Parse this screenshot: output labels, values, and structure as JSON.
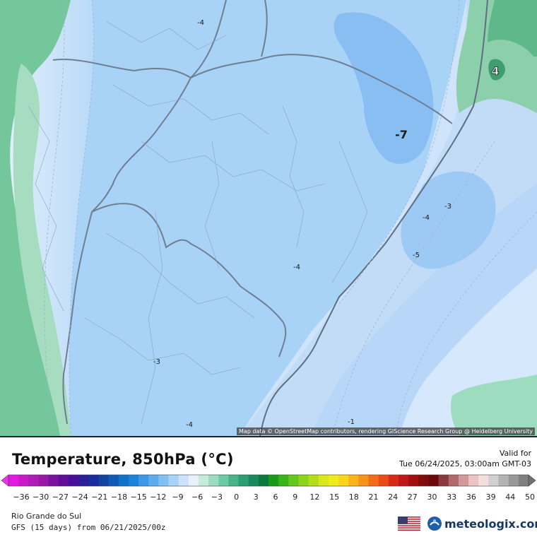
{
  "map": {
    "attribution": "Map data © OpenStreetMap contributors, rendering GIScience Research Group @ Heidelberg University",
    "contour_labels": [
      "-4",
      "-7",
      "-3",
      "-4",
      "-5",
      "-4",
      "-3",
      "-4",
      "-1",
      "4"
    ]
  },
  "title": "Temperature, 850hPa (°C)",
  "valid": {
    "label": "Valid for",
    "datetime": "Tue 06/24/2025, 03:00am GMT-03"
  },
  "legend": {
    "ticks": [
      "-36",
      "-30",
      "-27",
      "-24",
      "-21",
      "-18",
      "-15",
      "-12",
      "-9",
      "-6",
      "-3",
      "0",
      "3",
      "6",
      "9",
      "12",
      "15",
      "18",
      "21",
      "24",
      "27",
      "30",
      "33",
      "36",
      "39",
      "44",
      "50"
    ],
    "colors": [
      "#e41ae4",
      "#c81ac8",
      "#b01ab8",
      "#9818a8",
      "#7a12a0",
      "#5e0e98",
      "#4a0c9a",
      "#2a1e9a",
      "#1a2aa0",
      "#12449e",
      "#0e5ab4",
      "#1170c8",
      "#1a84dc",
      "#3a98e6",
      "#5cacee",
      "#82c0f4",
      "#a8d2f6",
      "#cce2fa",
      "#e8f0fc",
      "#c6ecdc",
      "#9adcc2",
      "#6ccaa6",
      "#48b48a",
      "#2a9e74",
      "#1a8a5e",
      "#0c7a3c",
      "#1a9a1a",
      "#3ab41a",
      "#64c81a",
      "#8ad41a",
      "#b4de1a",
      "#d8e81a",
      "#f0ec1a",
      "#f8d41a",
      "#f8b418",
      "#f89218",
      "#f46c18",
      "#e84a18",
      "#d82a18",
      "#c01818",
      "#a01010",
      "#820c0c",
      "#6a0a0a",
      "#8a3a3a",
      "#b06a6a",
      "#d09a9a",
      "#eac4c4",
      "#f4dede",
      "#d0d0d0",
      "#b4b4b4",
      "#989898",
      "#808080"
    ]
  },
  "region": "Rio Grande do Sul",
  "model": "GFS (15 days) from 06/21/2025/00z",
  "logo": {
    "text": "meteologix.com"
  }
}
